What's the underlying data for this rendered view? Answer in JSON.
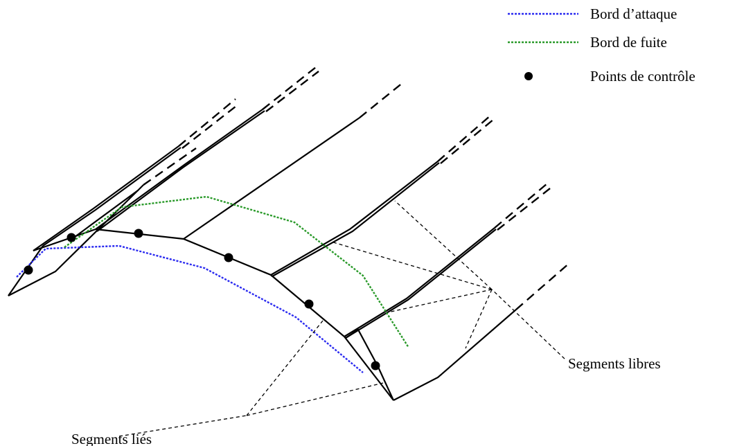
{
  "legend": {
    "leading_edge": {
      "label": "Bord d’attaque",
      "color": "#2a2af0"
    },
    "trailing_edge": {
      "label": "Bord de fuite",
      "color": "#2a9a2a"
    },
    "control_points": {
      "label": "Points de contrôle",
      "color": "#000000"
    }
  },
  "annotations": {
    "free_segments": "Segments libres",
    "bound_segments": "Segments liés"
  }
}
